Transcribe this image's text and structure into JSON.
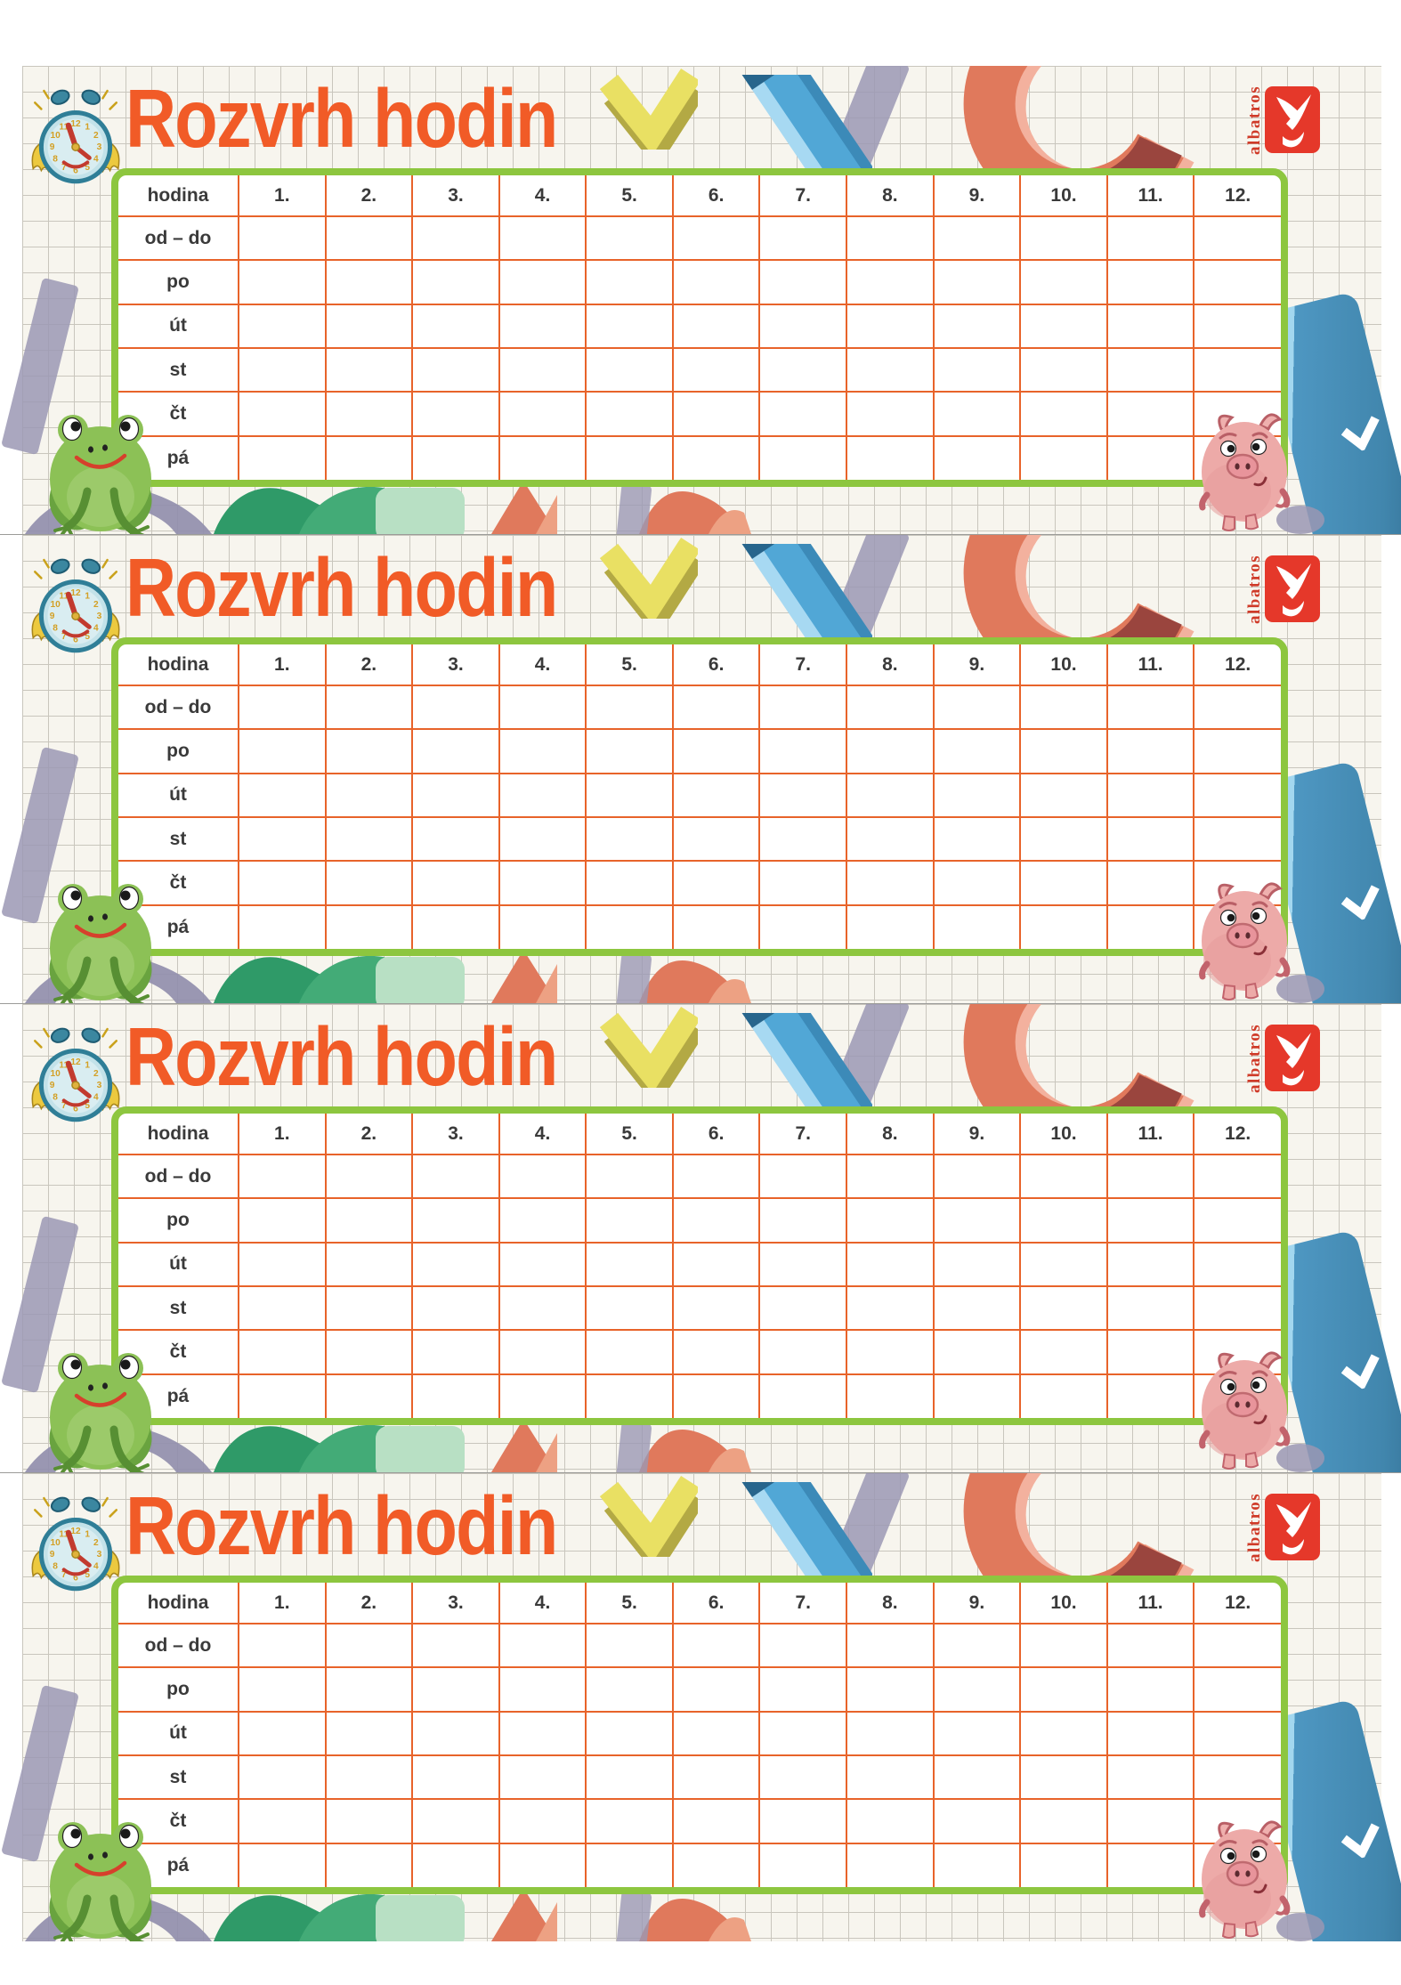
{
  "document": {
    "sheet_count": 4,
    "sheet": {
      "title": "Rozvrh hodin",
      "brand": "albatros",
      "table": {
        "corner_label": "hodina",
        "period_columns": [
          "1.",
          "2.",
          "3.",
          "4.",
          "5.",
          "6.",
          "7.",
          "8.",
          "9.",
          "10.",
          "11.",
          "12."
        ],
        "row_labels": [
          "od – do",
          "po",
          "út",
          "st",
          "čt",
          "pá"
        ]
      },
      "clock_numbers": [
        "1",
        "2",
        "3",
        "4",
        "5",
        "6",
        "7",
        "8",
        "9",
        "10",
        "11",
        "12"
      ]
    }
  },
  "colors": {
    "title_orange": "#f15b27",
    "table_border_green": "#8dc63f",
    "cell_line_orange": "#e8632a",
    "label_text": "#3a3a3a",
    "logo_red": "#e5382a",
    "paper_cream": "#f7f5ee",
    "grid_line_gray": "#c9c6bd",
    "doodle_yellow": "#e9e063",
    "doodle_blue": "#51a7d6",
    "doodle_salmon": "#e0795c",
    "doodle_purple": "#9b98b4",
    "doodle_green": "#2f9a68"
  },
  "icons": {
    "clock": "alarm-clock-with-wings",
    "frog": "green-frog",
    "pig": "pink-pig",
    "bird": "albatros-bird-logo",
    "check": "yellow-check-doodle",
    "crayon": "blue-crayon-doodle",
    "c_curve": "red-c-curve-doodle"
  }
}
